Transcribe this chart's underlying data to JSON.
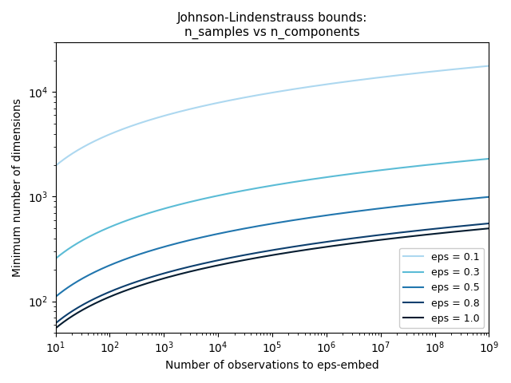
{
  "title": "Johnson-Lindenstrauss bounds:\nn_samples vs n_components",
  "xlabel": "Number of observations to eps-embed",
  "ylabel": "Minimum number of dimensions",
  "eps_values": [
    0.1,
    0.3,
    0.5,
    0.8,
    1.0
  ],
  "colors": [
    "#add8f0",
    "#5bbcd6",
    "#2176ae",
    "#0d3f6e",
    "#051c30"
  ],
  "legend_labels": [
    "eps = 0.1",
    "eps = 0.3",
    "eps = 0.5",
    "eps = 0.8",
    "eps = 1.0"
  ],
  "xlim": [
    10,
    1000000000
  ],
  "ylim": [
    50,
    30000
  ],
  "figsize": [
    6.4,
    4.8
  ],
  "dpi": 100
}
